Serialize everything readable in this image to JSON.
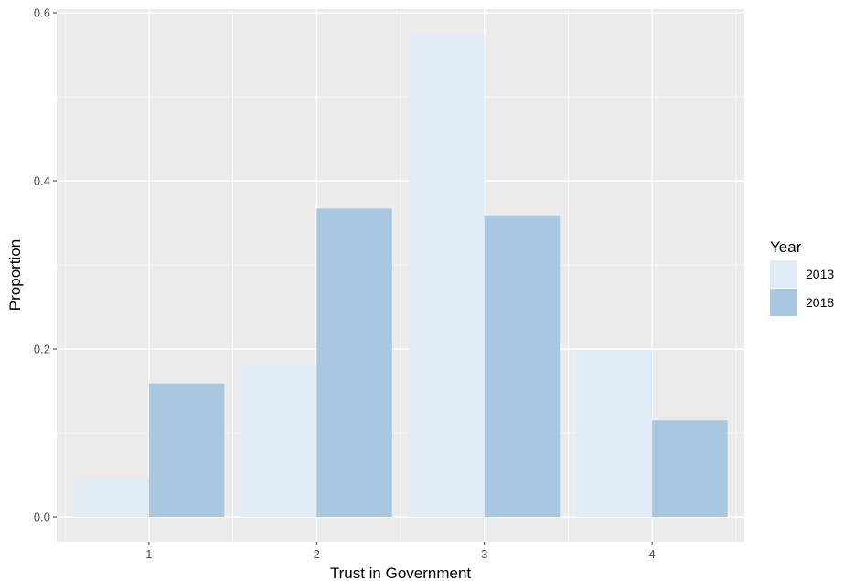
{
  "chart_data": {
    "type": "bar",
    "categories": [
      "1",
      "2",
      "3",
      "4"
    ],
    "series": [
      {
        "name": "2013",
        "values": [
          0.046,
          0.181,
          0.574,
          0.198
        ],
        "color": "#e1ebf5"
      },
      {
        "name": "2018",
        "values": [
          0.159,
          0.367,
          0.359,
          0.115
        ],
        "color": "#a9c8e0"
      }
    ],
    "xlabel": "Trust in Government",
    "ylabel": "Proportion",
    "ylim": [
      -0.03,
      0.6
    ],
    "yticks": [
      0.0,
      0.2,
      0.4,
      0.6
    ],
    "ytick_labels": [
      "0.0",
      "0.2",
      "0.4",
      "0.6"
    ],
    "legend": {
      "title": "Year",
      "position": "right"
    },
    "grid": true,
    "panel_background": "#ebebeb",
    "grid_color": "#ffffff"
  }
}
